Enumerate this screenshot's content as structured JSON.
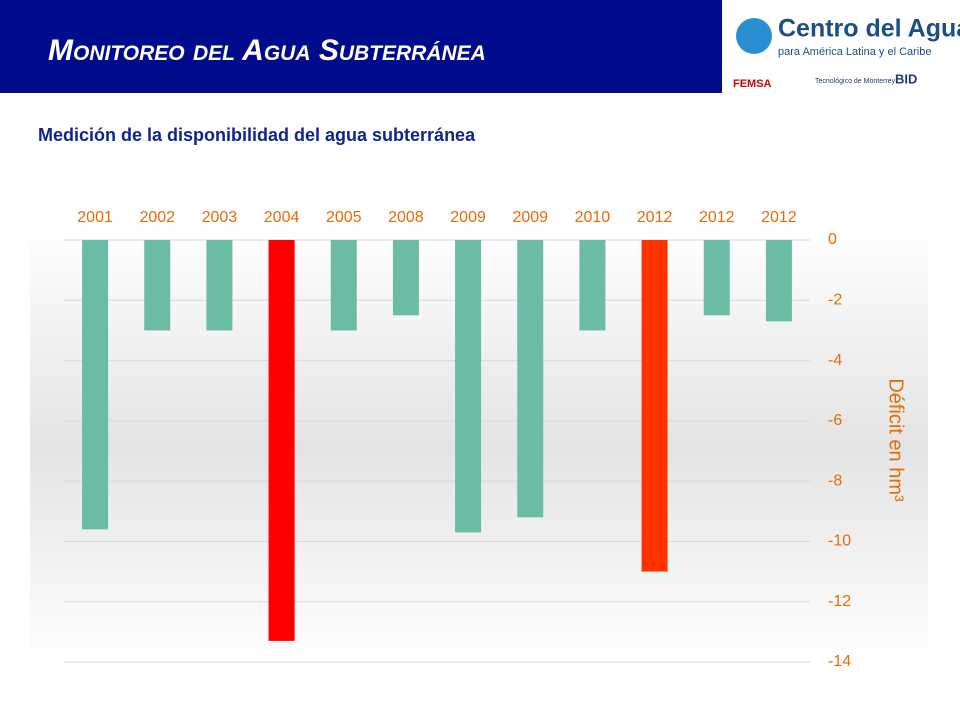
{
  "header": {
    "title": "Monitoreo del Agua Subterránea",
    "logo_title": "Centro del Agua",
    "logo_subtitle": "para América Latina y el Caribe",
    "partners": [
      "FEMSA",
      "Tecnológico de Monterrey",
      "BID"
    ]
  },
  "chart_data": {
    "type": "bar",
    "title": "Medición de la disponibilidad del agua subterránea",
    "y_label": "Déficit en hm³",
    "categories": [
      "2001",
      "2002",
      "2003",
      "2004",
      "2005",
      "2008",
      "2009",
      "2009",
      "2010",
      "2012",
      "2012",
      "2012"
    ],
    "values": [
      -9.6,
      -3.0,
      -3.0,
      -13.3,
      -3.0,
      -2.5,
      -9.7,
      -9.2,
      -3.0,
      -11.0,
      -2.5,
      -2.7
    ],
    "colors": [
      "#6bbba5",
      "#6bbba5",
      "#6bbba5",
      "#ff0000",
      "#6bbba5",
      "#6bbba5",
      "#6bbba5",
      "#6bbba5",
      "#6bbba5",
      "#ff3300",
      "#6bbba5",
      "#6bbba5"
    ],
    "ylim": [
      -14,
      0
    ],
    "yticks": [
      0,
      -2,
      -4,
      -6,
      -8,
      -10,
      -12,
      -14
    ],
    "grid": true
  }
}
